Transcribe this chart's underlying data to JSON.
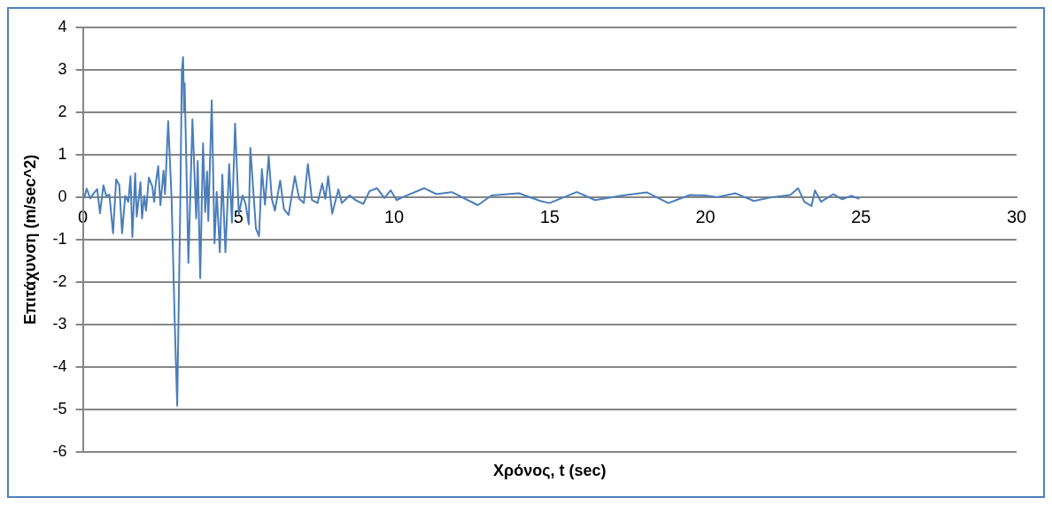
{
  "chart_data": {
    "type": "line",
    "xlabel": "Χρόνος, t (sec)",
    "ylabel": "Επιτάχυνση (m/sec^2)",
    "xlim": [
      0,
      30
    ],
    "xticks": [
      0,
      5,
      10,
      15,
      20,
      25,
      30
    ],
    "ylim": [
      -6,
      4
    ],
    "yticks": [
      -6,
      -5,
      -4,
      -3,
      -2,
      -1,
      0,
      1,
      2,
      3,
      4
    ],
    "grid": "y",
    "legend": false,
    "marker": "none",
    "line_style": "solid",
    "series": [
      {
        "color": "#4a7ebb",
        "x": [
          0.04,
          0.12,
          0.24,
          0.36,
          0.46,
          0.55,
          0.66,
          0.75,
          0.85,
          0.97,
          1.07,
          1.17,
          1.26,
          1.36,
          1.46,
          1.53,
          1.59,
          1.68,
          1.73,
          1.85,
          1.9,
          1.97,
          2.03,
          2.12,
          2.23,
          2.29,
          2.34,
          2.42,
          2.49,
          2.59,
          2.64,
          2.74,
          2.85,
          2.95,
          3.03,
          3.13,
          3.18,
          3.22,
          3.25,
          3.27,
          3.39,
          3.52,
          3.64,
          3.69,
          3.77,
          3.86,
          3.93,
          3.99,
          4.03,
          4.14,
          4.23,
          4.3,
          4.4,
          4.48,
          4.58,
          4.7,
          4.79,
          4.89,
          5.01,
          5.13,
          5.23,
          5.33,
          5.38,
          5.56,
          5.66,
          5.75,
          5.85,
          5.97,
          6.07,
          6.17,
          6.34,
          6.46,
          6.61,
          6.81,
          6.95,
          7.1,
          7.23,
          7.36,
          7.54,
          7.69,
          7.79,
          7.88,
          8.01,
          8.21,
          8.32,
          8.57,
          8.76,
          9.01,
          9.21,
          9.45,
          9.69,
          9.89,
          10.08,
          10.28,
          10.97,
          11.36,
          11.85,
          12.69,
          13.13,
          14.01,
          14.7,
          14.99,
          15.87,
          16.46,
          17.34,
          18.13,
          18.81,
          19.5,
          19.99,
          20.38,
          20.97,
          21.56,
          22.15,
          22.73,
          22.98,
          23.18,
          23.41,
          23.52,
          23.72,
          24.11,
          24.4,
          24.69,
          24.95
        ],
        "values": [
          -0.03,
          0.2,
          -0.03,
          0.1,
          0.19,
          -0.38,
          0.28,
          0.03,
          0.06,
          -0.85,
          0.42,
          0.28,
          -0.85,
          0.03,
          -0.11,
          0.49,
          -0.94,
          0.56,
          -0.46,
          0.35,
          -0.5,
          0.03,
          -0.32,
          0.46,
          0.25,
          -0.11,
          0.32,
          0.73,
          -0.19,
          0.62,
          0.07,
          1.79,
          -0.03,
          -2.93,
          -4.91,
          -0.11,
          2.97,
          3.3,
          2.01,
          2.68,
          -1.55,
          1.83,
          -0.5,
          0.85,
          -1.91,
          1.27,
          -0.35,
          0.6,
          -0.56,
          2.28,
          -1.09,
          0.12,
          -1.3,
          0.53,
          -1.3,
          0.78,
          -0.6,
          1.73,
          -0.4,
          0.04,
          -0.17,
          -0.64,
          1.16,
          -0.74,
          -0.92,
          0.66,
          -0.18,
          0.97,
          -0.04,
          -0.32,
          0.39,
          -0.28,
          -0.42,
          0.49,
          -0.04,
          -0.14,
          0.78,
          -0.07,
          -0.14,
          0.32,
          -0.04,
          0.49,
          -0.39,
          0.18,
          -0.14,
          0.04,
          -0.07,
          -0.16,
          0.14,
          0.21,
          -0.02,
          0.16,
          -0.07,
          0,
          0.21,
          0.07,
          0.12,
          -0.19,
          0.04,
          0.09,
          -0.09,
          -0.14,
          0.12,
          -0.07,
          0.04,
          0.11,
          -0.14,
          0.05,
          0.04,
          0,
          0.09,
          -0.09,
          0,
          0.05,
          0.21,
          -0.11,
          -0.21,
          0.16,
          -0.11,
          0.07,
          -0.05,
          0.03,
          -0.04
        ]
      }
    ]
  }
}
